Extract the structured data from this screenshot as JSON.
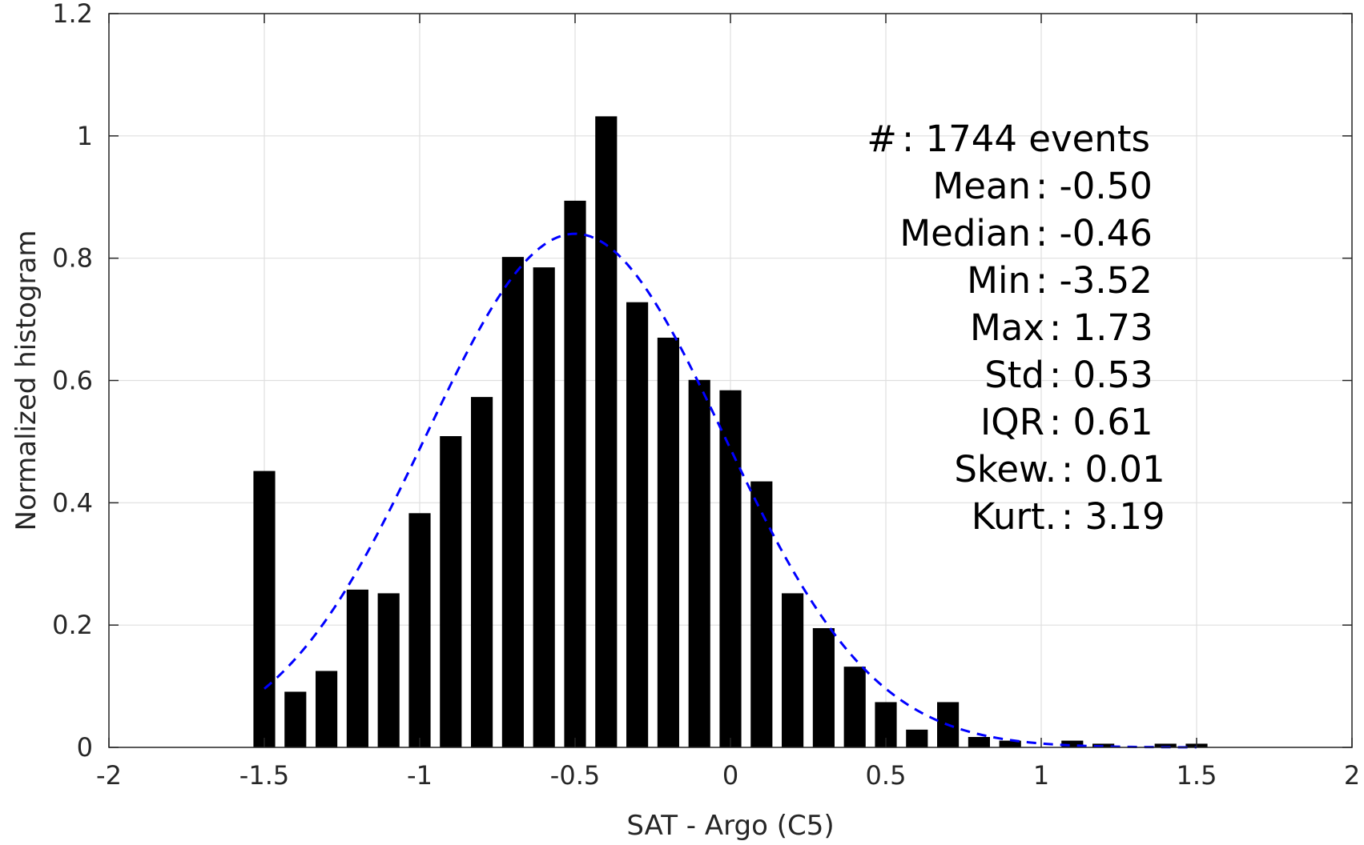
{
  "chart_data": {
    "type": "bar",
    "xlabel": "SAT - Argo (C5)",
    "ylabel": "Normalized histogram",
    "xlim": [
      -2,
      2
    ],
    "ylim": [
      0,
      1.2
    ],
    "xticks": [
      -2,
      -1.5,
      -1,
      -0.5,
      0,
      0.5,
      1,
      1.5,
      2
    ],
    "xtick_labels": [
      "-2",
      "-1.5",
      "-1",
      "-0.5",
      "0",
      "0.5",
      "1",
      "1.5",
      "2"
    ],
    "yticks": [
      0,
      0.2,
      0.4,
      0.6,
      0.8,
      1,
      1.2
    ],
    "ytick_labels": [
      "0",
      "0.2",
      "0.4",
      "0.6",
      "0.8",
      "1",
      "1.2"
    ],
    "grid": true,
    "bar_color": "#000000",
    "bar_width": 0.07,
    "series": [
      {
        "type": "bar",
        "x": [
          -1.5,
          -1.4,
          -1.3,
          -1.2,
          -1.1,
          -1.0,
          -0.9,
          -0.8,
          -0.7,
          -0.6,
          -0.5,
          -0.4,
          -0.3,
          -0.2,
          -0.1,
          0.0,
          0.1,
          0.2,
          0.3,
          0.4,
          0.5,
          0.6,
          0.7,
          0.8,
          0.9,
          1.0,
          1.1,
          1.2,
          1.3,
          1.4,
          1.5
        ],
        "values": [
          0.452,
          0.091,
          0.125,
          0.258,
          0.252,
          0.383,
          0.509,
          0.573,
          0.802,
          0.785,
          0.894,
          1.032,
          0.728,
          0.67,
          0.601,
          0.584,
          0.435,
          0.252,
          0.195,
          0.132,
          0.074,
          0.029,
          0.074,
          0.017,
          0.011,
          0.0,
          0.011,
          0.006,
          0.0,
          0.006,
          0.006
        ]
      },
      {
        "type": "line",
        "style": "dashed",
        "color": "#0000ff",
        "mean": -0.5,
        "std": 0.48,
        "peak": 0.84,
        "x_start": -1.5,
        "x_end": 1.5
      }
    ],
    "annotations": [
      "#  : 1744 events",
      "Mean : -0.50",
      "Median : -0.46",
      "Min : -3.52",
      "Max : 1.73",
      "Std : 0.53",
      "IQR : 0.61",
      "Skew. : 0.01",
      "Kurt. : 3.19"
    ]
  }
}
